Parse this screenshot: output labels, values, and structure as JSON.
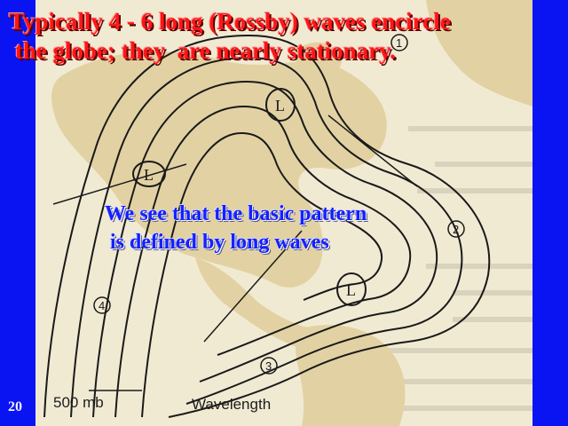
{
  "title": "Typically 4 - 6 long (Rossby) waves encircle\n the globe; they  are nearly stationary.",
  "callout": "We see that the basic pattern\n is defined by long waves",
  "slide_number": "20",
  "map": {
    "pressure_level": "500 mb",
    "axis_label": "Wavelength",
    "lows": [
      "L",
      "L",
      "L"
    ],
    "wave_numbers": [
      "1",
      "2",
      "3",
      "4"
    ],
    "colors": {
      "background": "#0a14f2",
      "map_paper": "#f1ead3",
      "land": "#e2d2a3",
      "title": "#ff1616",
      "callout": "#1320ff"
    }
  }
}
